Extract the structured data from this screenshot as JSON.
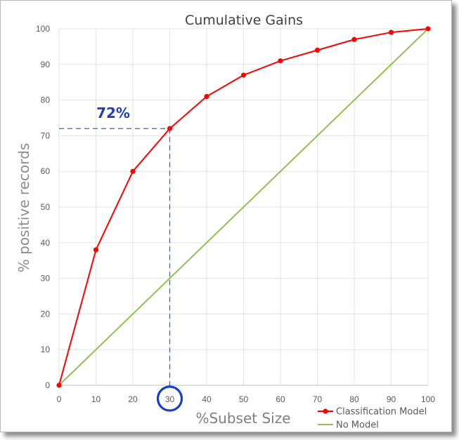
{
  "chart_data": {
    "type": "line",
    "title": "Cumulative Gains",
    "xlabel": "%Subset Size",
    "ylabel": "% positive records",
    "xlim": [
      0,
      100
    ],
    "ylim": [
      0,
      100
    ],
    "x_ticks": [
      "0",
      "10",
      "20",
      "30",
      "40",
      "50",
      "60",
      "70",
      "80",
      "90",
      "100"
    ],
    "y_ticks": [
      "0",
      "10",
      "20",
      "30",
      "40",
      "50",
      "60",
      "70",
      "80",
      "90",
      "100"
    ],
    "grid": true,
    "legend_position": "bottom-right",
    "series": [
      {
        "name": "Classification Model",
        "color": "#ff0000",
        "markers": true,
        "x": [
          0,
          10,
          20,
          30,
          40,
          50,
          60,
          70,
          80,
          90,
          100
        ],
        "y": [
          0,
          38,
          60,
          72,
          81,
          87,
          91,
          94,
          97,
          99,
          100
        ]
      },
      {
        "name": "No Model",
        "color": "#92c050",
        "markers": false,
        "x": [
          0,
          100
        ],
        "y": [
          0,
          100
        ]
      }
    ],
    "annotations": [
      {
        "text": "72%",
        "x": 30,
        "y": 72,
        "color": "#1f3fbf",
        "guide_lines": "dashed",
        "guide_color": "#3366cc"
      }
    ],
    "highlight": {
      "x_tick": "30",
      "shape": "circle",
      "color": "#1440c8"
    }
  }
}
